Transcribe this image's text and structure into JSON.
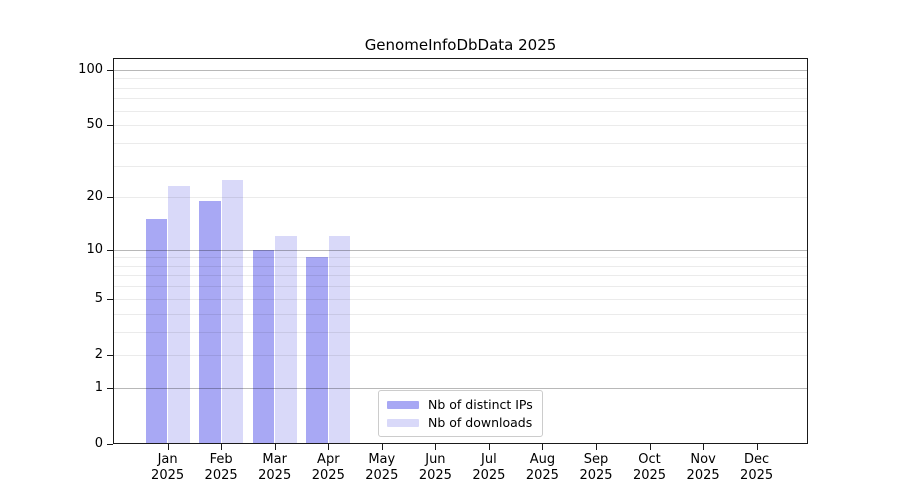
{
  "chart_data": {
    "type": "bar",
    "title": "GenomeInfoDbData 2025",
    "xlabel": "",
    "ylabel": "",
    "scale": "log1p",
    "categories": [
      "Jan",
      "Feb",
      "Mar",
      "Apr",
      "May",
      "Jun",
      "Jul",
      "Aug",
      "Sep",
      "Oct",
      "Nov",
      "Dec"
    ],
    "x_year_label": "2025",
    "series": [
      {
        "name": "Nb of distinct IPs",
        "color": "#a8a8f4",
        "values": [
          15,
          19,
          10,
          9,
          0,
          0,
          0,
          0,
          0,
          0,
          0,
          0
        ]
      },
      {
        "name": "Nb of downloads",
        "color": "#d9d9f9",
        "values": [
          23,
          25,
          12,
          12,
          0,
          0,
          0,
          0,
          0,
          0,
          0,
          0
        ]
      }
    ],
    "y_ticks": [
      100,
      50,
      20,
      10,
      5,
      2,
      1,
      0
    ],
    "ylim": [
      0,
      116
    ],
    "gridlines_major": [
      1,
      10,
      100
    ],
    "gridlines_minor": [
      2,
      3,
      4,
      5,
      6,
      7,
      8,
      9,
      20,
      30,
      40,
      50,
      60,
      70,
      80,
      90
    ],
    "legend_position": "lower center inside plot",
    "grid": "horizontal only, drawn over bars"
  },
  "colors": {
    "axis": "#1a1a1a",
    "grid_major": "rgba(0,0,0,0.28)",
    "grid_minor": "rgba(0,0,0,0.08)",
    "background": "#ffffff"
  }
}
